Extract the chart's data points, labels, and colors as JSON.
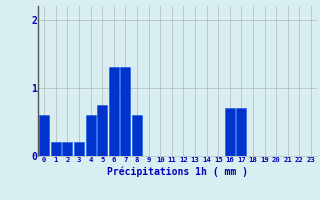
{
  "hours": [
    0,
    1,
    2,
    3,
    4,
    5,
    6,
    7,
    8,
    9,
    10,
    11,
    12,
    13,
    14,
    15,
    16,
    17,
    18,
    19,
    20,
    21,
    22,
    23
  ],
  "values": [
    0.6,
    0.2,
    0.2,
    0.2,
    0.6,
    0.75,
    1.3,
    1.3,
    0.6,
    0.0,
    0.0,
    0.0,
    0.0,
    0.0,
    0.0,
    0.0,
    0.7,
    0.7,
    0.0,
    0.0,
    0.0,
    0.0,
    0.0,
    0.0
  ],
  "bar_color": "#0033cc",
  "bar_edge_color": "#1155ee",
  "background_color": "#d8eef0",
  "grid_color": "#b0b8b8",
  "xlabel": "Précipitations 1h ( mm )",
  "xlabel_color": "#0000bb",
  "tick_color": "#0000bb",
  "spine_color": "#555555",
  "ylim": [
    0,
    2.2
  ],
  "yticks": [
    0,
    1,
    2
  ],
  "xlim": [
    -0.5,
    23.5
  ]
}
